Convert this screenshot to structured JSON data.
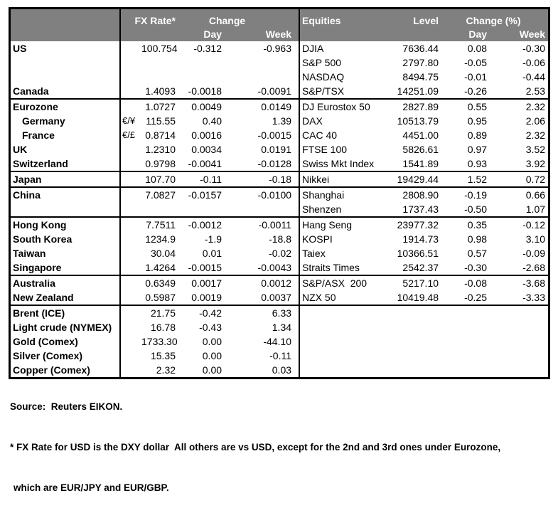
{
  "colors": {
    "header_bg": "#808080",
    "header_text": "#ffffff",
    "grid": "#000000",
    "body_text": "#000000"
  },
  "fx_table": {
    "header": {
      "fx_rate": "FX Rate*",
      "change": "Change",
      "day": "Day",
      "week": "Week"
    }
  },
  "equity_table": {
    "header": {
      "name": "Equities",
      "level": "Level",
      "change_pct": "Change (%)",
      "day": "Day",
      "week": "Week"
    }
  },
  "rows": [
    {
      "divider_after": false,
      "left": {
        "label": "US",
        "pair": "",
        "rate": "100.754",
        "day": "-0.312",
        "week": "-0.963",
        "indent": false
      },
      "right": {
        "name": "DJIA",
        "level": "7636.44",
        "day": "0.08",
        "week": "-0.30"
      }
    },
    {
      "divider_after": false,
      "left": {
        "label": "",
        "pair": "",
        "rate": "",
        "day": "",
        "week": "",
        "indent": false
      },
      "right": {
        "name": "S&P 500",
        "level": "2797.80",
        "day": "-0.05",
        "week": "-0.06"
      }
    },
    {
      "divider_after": false,
      "left": {
        "label": "",
        "pair": "",
        "rate": "",
        "day": "",
        "week": "",
        "indent": false
      },
      "right": {
        "name": "NASDAQ",
        "level": "8494.75",
        "day": "-0.01",
        "week": "-0.44"
      }
    },
    {
      "divider_after": true,
      "left": {
        "label": "Canada",
        "pair": "",
        "rate": "1.4093",
        "day": "-0.0018",
        "week": "-0.0091",
        "indent": false
      },
      "right": {
        "name": "S&P/TSX",
        "level": "14251.09",
        "day": "-0.26",
        "week": "2.53"
      }
    },
    {
      "divider_after": false,
      "left": {
        "label": "Eurozone",
        "pair": "",
        "rate": "1.0727",
        "day": "0.0049",
        "week": "0.0149",
        "indent": false
      },
      "right": {
        "name": "DJ Eurostox 50",
        "level": "2827.89",
        "day": "0.55",
        "week": "2.32"
      }
    },
    {
      "divider_after": false,
      "left": {
        "label": "Germany",
        "pair": "€/¥",
        "rate": "115.55",
        "day": "0.40",
        "week": "1.39",
        "indent": true
      },
      "right": {
        "name": "DAX",
        "level": "10513.79",
        "day": "0.95",
        "week": "2.06"
      }
    },
    {
      "divider_after": false,
      "left": {
        "label": "France",
        "pair": "€/£",
        "rate": "0.8714",
        "day": "0.0016",
        "week": "-0.0015",
        "indent": true
      },
      "right": {
        "name": "CAC 40",
        "level": "4451.00",
        "day": "0.89",
        "week": "2.32"
      }
    },
    {
      "divider_after": false,
      "left": {
        "label": "UK",
        "pair": "",
        "rate": "1.2310",
        "day": "0.0034",
        "week": "0.0191",
        "indent": false
      },
      "right": {
        "name": "FTSE 100",
        "level": "5826.61",
        "day": "0.97",
        "week": "3.52"
      }
    },
    {
      "divider_after": true,
      "left": {
        "label": "Switzerland",
        "pair": "",
        "rate": "0.9798",
        "day": "-0.0041",
        "week": "-0.0128",
        "indent": false
      },
      "right": {
        "name": "Swiss Mkt Index",
        "level": "1541.89",
        "day": "0.93",
        "week": "3.92"
      }
    },
    {
      "divider_after": true,
      "left": {
        "label": "Japan",
        "pair": "",
        "rate": "107.70",
        "day": "-0.11",
        "week": "-0.18",
        "indent": false
      },
      "right": {
        "name": "Nikkei",
        "level": "19429.44",
        "day": "1.52",
        "week": "0.72"
      }
    },
    {
      "divider_after": false,
      "left": {
        "label": "China",
        "pair": "",
        "rate": "7.0827",
        "day": "-0.0157",
        "week": "-0.0100",
        "indent": false
      },
      "right": {
        "name": "Shanghai",
        "level": "2808.90",
        "day": "-0.19",
        "week": "0.66"
      }
    },
    {
      "divider_after": true,
      "left": {
        "label": "",
        "pair": "",
        "rate": "",
        "day": "",
        "week": "",
        "indent": false
      },
      "right": {
        "name": "Shenzen",
        "level": "1737.43",
        "day": "-0.50",
        "week": "1.07"
      }
    },
    {
      "divider_after": false,
      "left": {
        "label": "Hong Kong",
        "pair": "",
        "rate": "7.7511",
        "day": "-0.0012",
        "week": "-0.0011",
        "indent": false
      },
      "right": {
        "name": "Hang Seng",
        "level": "23977.32",
        "day": "0.35",
        "week": "-0.12"
      }
    },
    {
      "divider_after": false,
      "left": {
        "label": "South Korea",
        "pair": "",
        "rate": "1234.9",
        "day": "-1.9",
        "week": "-18.8",
        "indent": false
      },
      "right": {
        "name": "KOSPI",
        "level": "1914.73",
        "day": "0.98",
        "week": "3.10"
      }
    },
    {
      "divider_after": false,
      "left": {
        "label": "Taiwan",
        "pair": "",
        "rate": "30.04",
        "day": "0.01",
        "week": "-0.02",
        "indent": false
      },
      "right": {
        "name": "Taiex",
        "level": "10366.51",
        "day": "0.57",
        "week": "-0.09"
      }
    },
    {
      "divider_after": true,
      "left": {
        "label": "Singapore",
        "pair": "",
        "rate": "1.4264",
        "day": "-0.0015",
        "week": "-0.0043",
        "indent": false
      },
      "right": {
        "name": "Straits Times",
        "level": "2542.37",
        "day": "-0.30",
        "week": "-2.68"
      }
    },
    {
      "divider_after": false,
      "left": {
        "label": "Australia",
        "pair": "",
        "rate": "0.6349",
        "day": "0.0017",
        "week": "0.0012",
        "indent": false
      },
      "right": {
        "name": "S&P/ASX  200",
        "level": "5217.10",
        "day": "-0.08",
        "week": "-3.68"
      }
    },
    {
      "divider_after": true,
      "left": {
        "label": "New Zealand",
        "pair": "",
        "rate": "0.5987",
        "day": "0.0019",
        "week": "0.0037",
        "indent": false
      },
      "right": {
        "name": "NZX 50",
        "level": "10419.48",
        "day": "-0.25",
        "week": "-3.33"
      }
    },
    {
      "divider_after": false,
      "left": {
        "label": "Brent (ICE)",
        "pair": "",
        "rate": "21.75",
        "day": "-0.42",
        "week": "6.33",
        "indent": false
      },
      "right": {
        "name": "",
        "level": "",
        "day": "",
        "week": ""
      }
    },
    {
      "divider_after": false,
      "left": {
        "label": "Light crude (NYMEX)",
        "pair": "",
        "rate": "16.78",
        "day": "-0.43",
        "week": "1.34",
        "indent": false
      },
      "right": {
        "name": "",
        "level": "",
        "day": "",
        "week": ""
      }
    },
    {
      "divider_after": false,
      "left": {
        "label": "Gold (Comex)",
        "pair": "",
        "rate": "1733.30",
        "day": "0.00",
        "week": "-44.10",
        "indent": false
      },
      "right": {
        "name": "",
        "level": "",
        "day": "",
        "week": ""
      }
    },
    {
      "divider_after": false,
      "left": {
        "label": "Silver (Comex)",
        "pair": "",
        "rate": "15.35",
        "day": "0.00",
        "week": "-0.11",
        "indent": false
      },
      "right": {
        "name": "",
        "level": "",
        "day": "",
        "week": ""
      }
    },
    {
      "divider_after": false,
      "left": {
        "label": "Copper (Comex)",
        "pair": "",
        "rate": "2.32",
        "day": "0.00",
        "week": "0.03",
        "indent": false
      },
      "right": {
        "name": "",
        "level": "",
        "day": "",
        "week": ""
      }
    }
  ],
  "footer": {
    "source": "Source:  Reuters EIKON.",
    "note_line1": "* FX Rate for USD is the DXY dollar  All others are vs USD, except for the 2nd and 3rd ones under Eurozone,",
    "note_line2": "which are EUR/JPY and EUR/GBP."
  }
}
